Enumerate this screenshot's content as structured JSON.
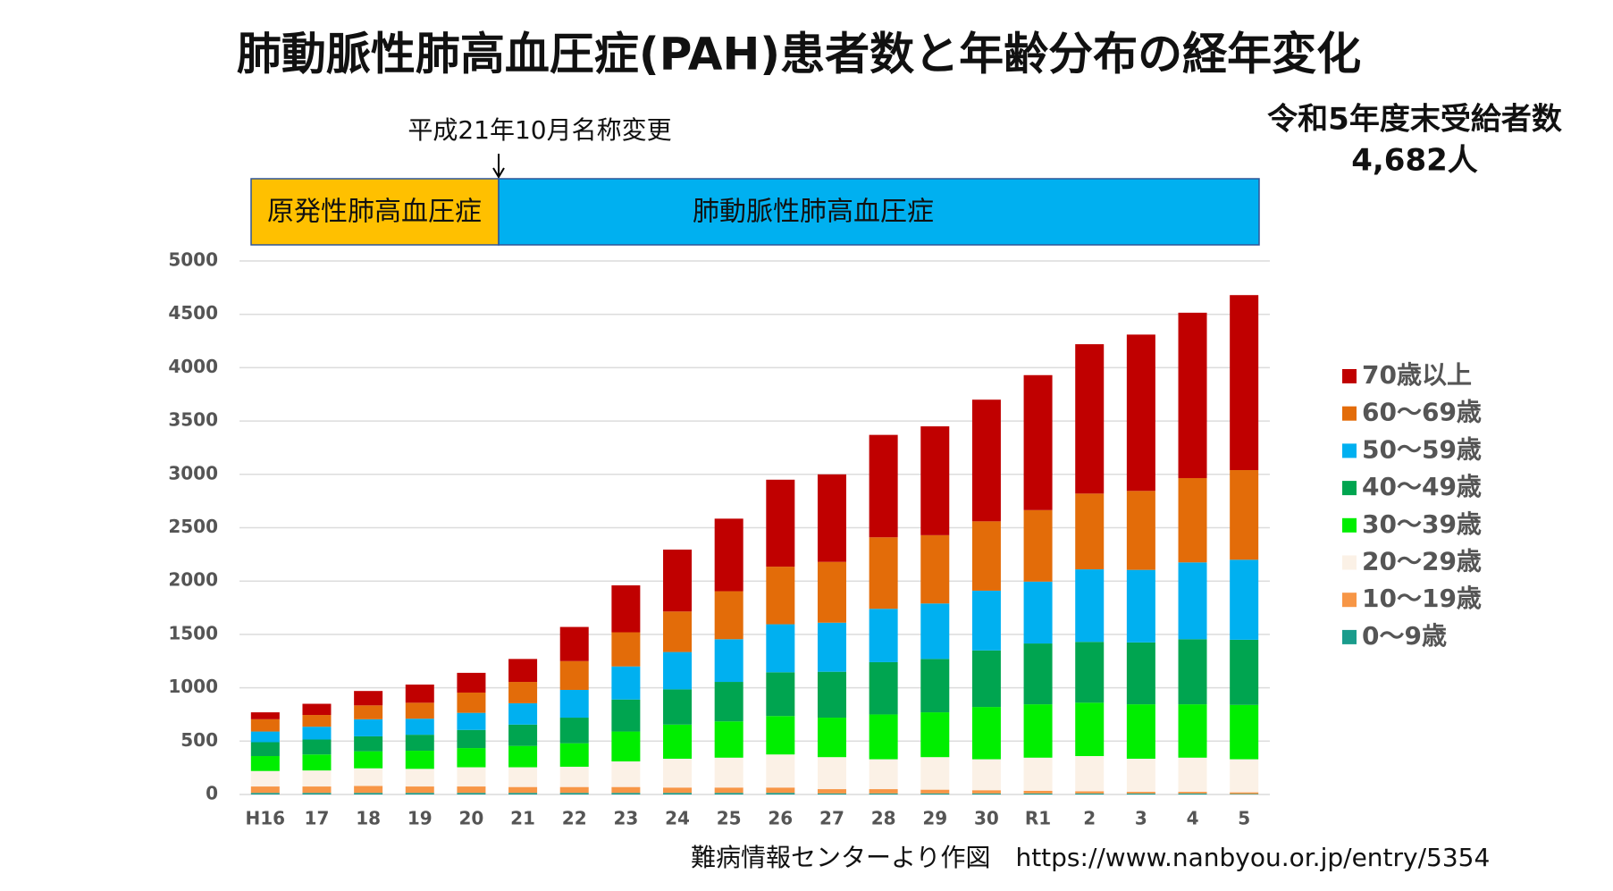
{
  "chart_data": {
    "type": "stacked_bar",
    "title": "肺動脈性肺高血圧症(PAH)患者数と年齢分布の経年変化",
    "annotation": "平成21年10月名称変更",
    "era_labels": [
      "原発性肺高血圧症",
      "肺動脈性肺高血圧症"
    ],
    "note": [
      "令和5年度末受給者数",
      "4,682人"
    ],
    "source": "難病情報センターより作図　https://www.nanbyou.or.jp/entry/5354",
    "categories": [
      "H16",
      "17",
      "18",
      "19",
      "20",
      "21",
      "22",
      "23",
      "24",
      "25",
      "26",
      "27",
      "28",
      "29",
      "30",
      "R1",
      "2",
      "3",
      "4",
      "5"
    ],
    "series": [
      {
        "name": "0～9歳",
        "color": "#1a9c8c",
        "values": [
          15,
          15,
          15,
          15,
          15,
          15,
          15,
          15,
          15,
          15,
          15,
          10,
          10,
          10,
          10,
          10,
          10,
          10,
          10,
          5
        ]
      },
      {
        "name": "10～19歳",
        "color": "#f79646",
        "values": [
          60,
          60,
          65,
          60,
          60,
          55,
          55,
          55,
          50,
          50,
          50,
          40,
          40,
          35,
          30,
          25,
          20,
          15,
          15,
          15
        ]
      },
      {
        "name": "20～29歳",
        "color": "#fbf1e6",
        "values": [
          145,
          150,
          165,
          165,
          180,
          185,
          190,
          240,
          270,
          280,
          310,
          300,
          280,
          305,
          290,
          310,
          330,
          310,
          320,
          310
        ]
      },
      {
        "name": "30～39歳",
        "color": "#00ee00",
        "values": [
          140,
          150,
          160,
          170,
          180,
          200,
          220,
          280,
          320,
          340,
          360,
          370,
          420,
          420,
          490,
          500,
          500,
          510,
          500,
          510
        ]
      },
      {
        "name": "40～49歳",
        "color": "#00a550",
        "values": [
          130,
          140,
          140,
          150,
          170,
          200,
          240,
          300,
          330,
          370,
          410,
          430,
          490,
          500,
          530,
          570,
          570,
          580,
          610,
          610
        ]
      },
      {
        "name": "50～59歳",
        "color": "#00b0f0",
        "values": [
          100,
          120,
          160,
          150,
          160,
          200,
          260,
          310,
          350,
          400,
          450,
          460,
          500,
          520,
          560,
          580,
          680,
          680,
          720,
          750
        ]
      },
      {
        "name": "60～69歳",
        "color": "#e36c09",
        "values": [
          115,
          110,
          130,
          150,
          190,
          200,
          270,
          320,
          380,
          450,
          540,
          570,
          670,
          640,
          650,
          670,
          710,
          740,
          790,
          840
        ]
      },
      {
        "name": "70歳以上",
        "color": "#c00000",
        "values": [
          65,
          105,
          135,
          170,
          185,
          215,
          320,
          440,
          580,
          680,
          815,
          820,
          960,
          1020,
          1140,
          1265,
          1400,
          1465,
          1550,
          1640
        ]
      }
    ],
    "ylim": [
      0,
      5000
    ],
    "yticks": [
      0,
      500,
      1000,
      1500,
      2000,
      2500,
      3000,
      3500,
      4000,
      4500,
      5000
    ],
    "grid": true
  }
}
